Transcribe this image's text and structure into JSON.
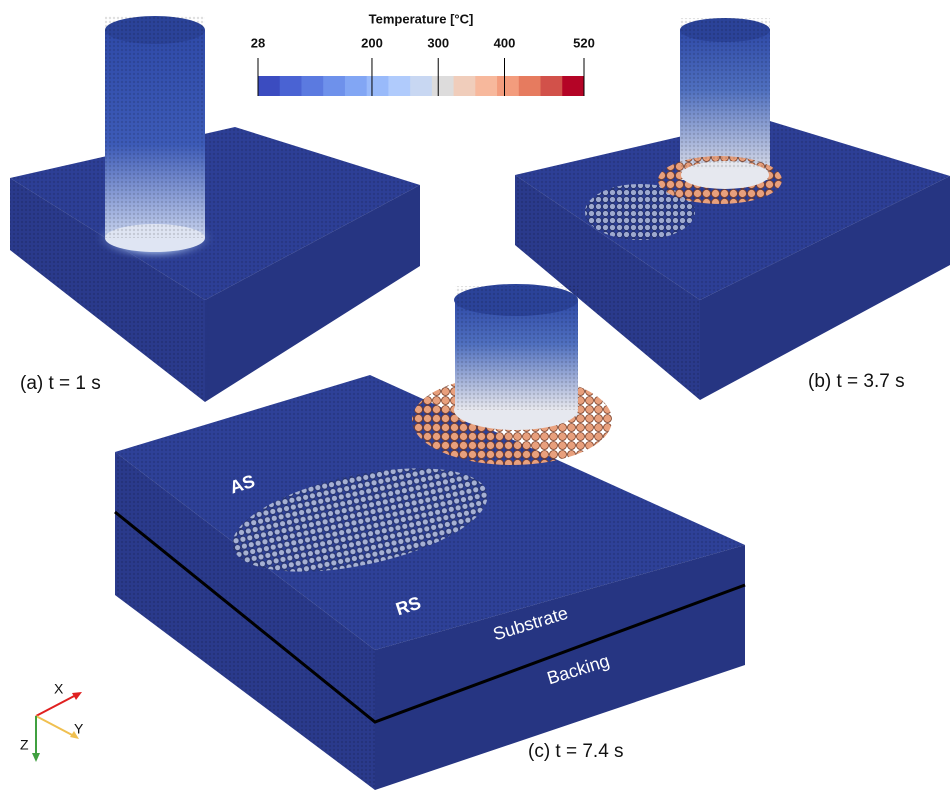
{
  "colorbar": {
    "title": "Temperature [°C]",
    "lim": [
      28,
      520
    ],
    "ticks": [
      28,
      200,
      300,
      400,
      520
    ],
    "colors": [
      "#3b4cc0",
      "#4a63d3",
      "#5b7ae0",
      "#6e91eb",
      "#82a6f4",
      "#99bafa",
      "#b0cbfc",
      "#c8d7f2",
      "#dddcdc",
      "#f0cdbb",
      "#f7b89c",
      "#f39c7d",
      "#e67b5f",
      "#d2514a",
      "#b40426"
    ]
  },
  "panels": [
    {
      "label": "(a) t = 1 s"
    },
    {
      "label": "(b) t = 3.7 s"
    },
    {
      "label": "(c) t = 7.4 s"
    }
  ],
  "annotations": {
    "as": "AS",
    "rs": "RS",
    "substrate": "Substrate",
    "backing": "Backing"
  },
  "axes": {
    "x": "X",
    "y": "Y",
    "z": "Z"
  }
}
